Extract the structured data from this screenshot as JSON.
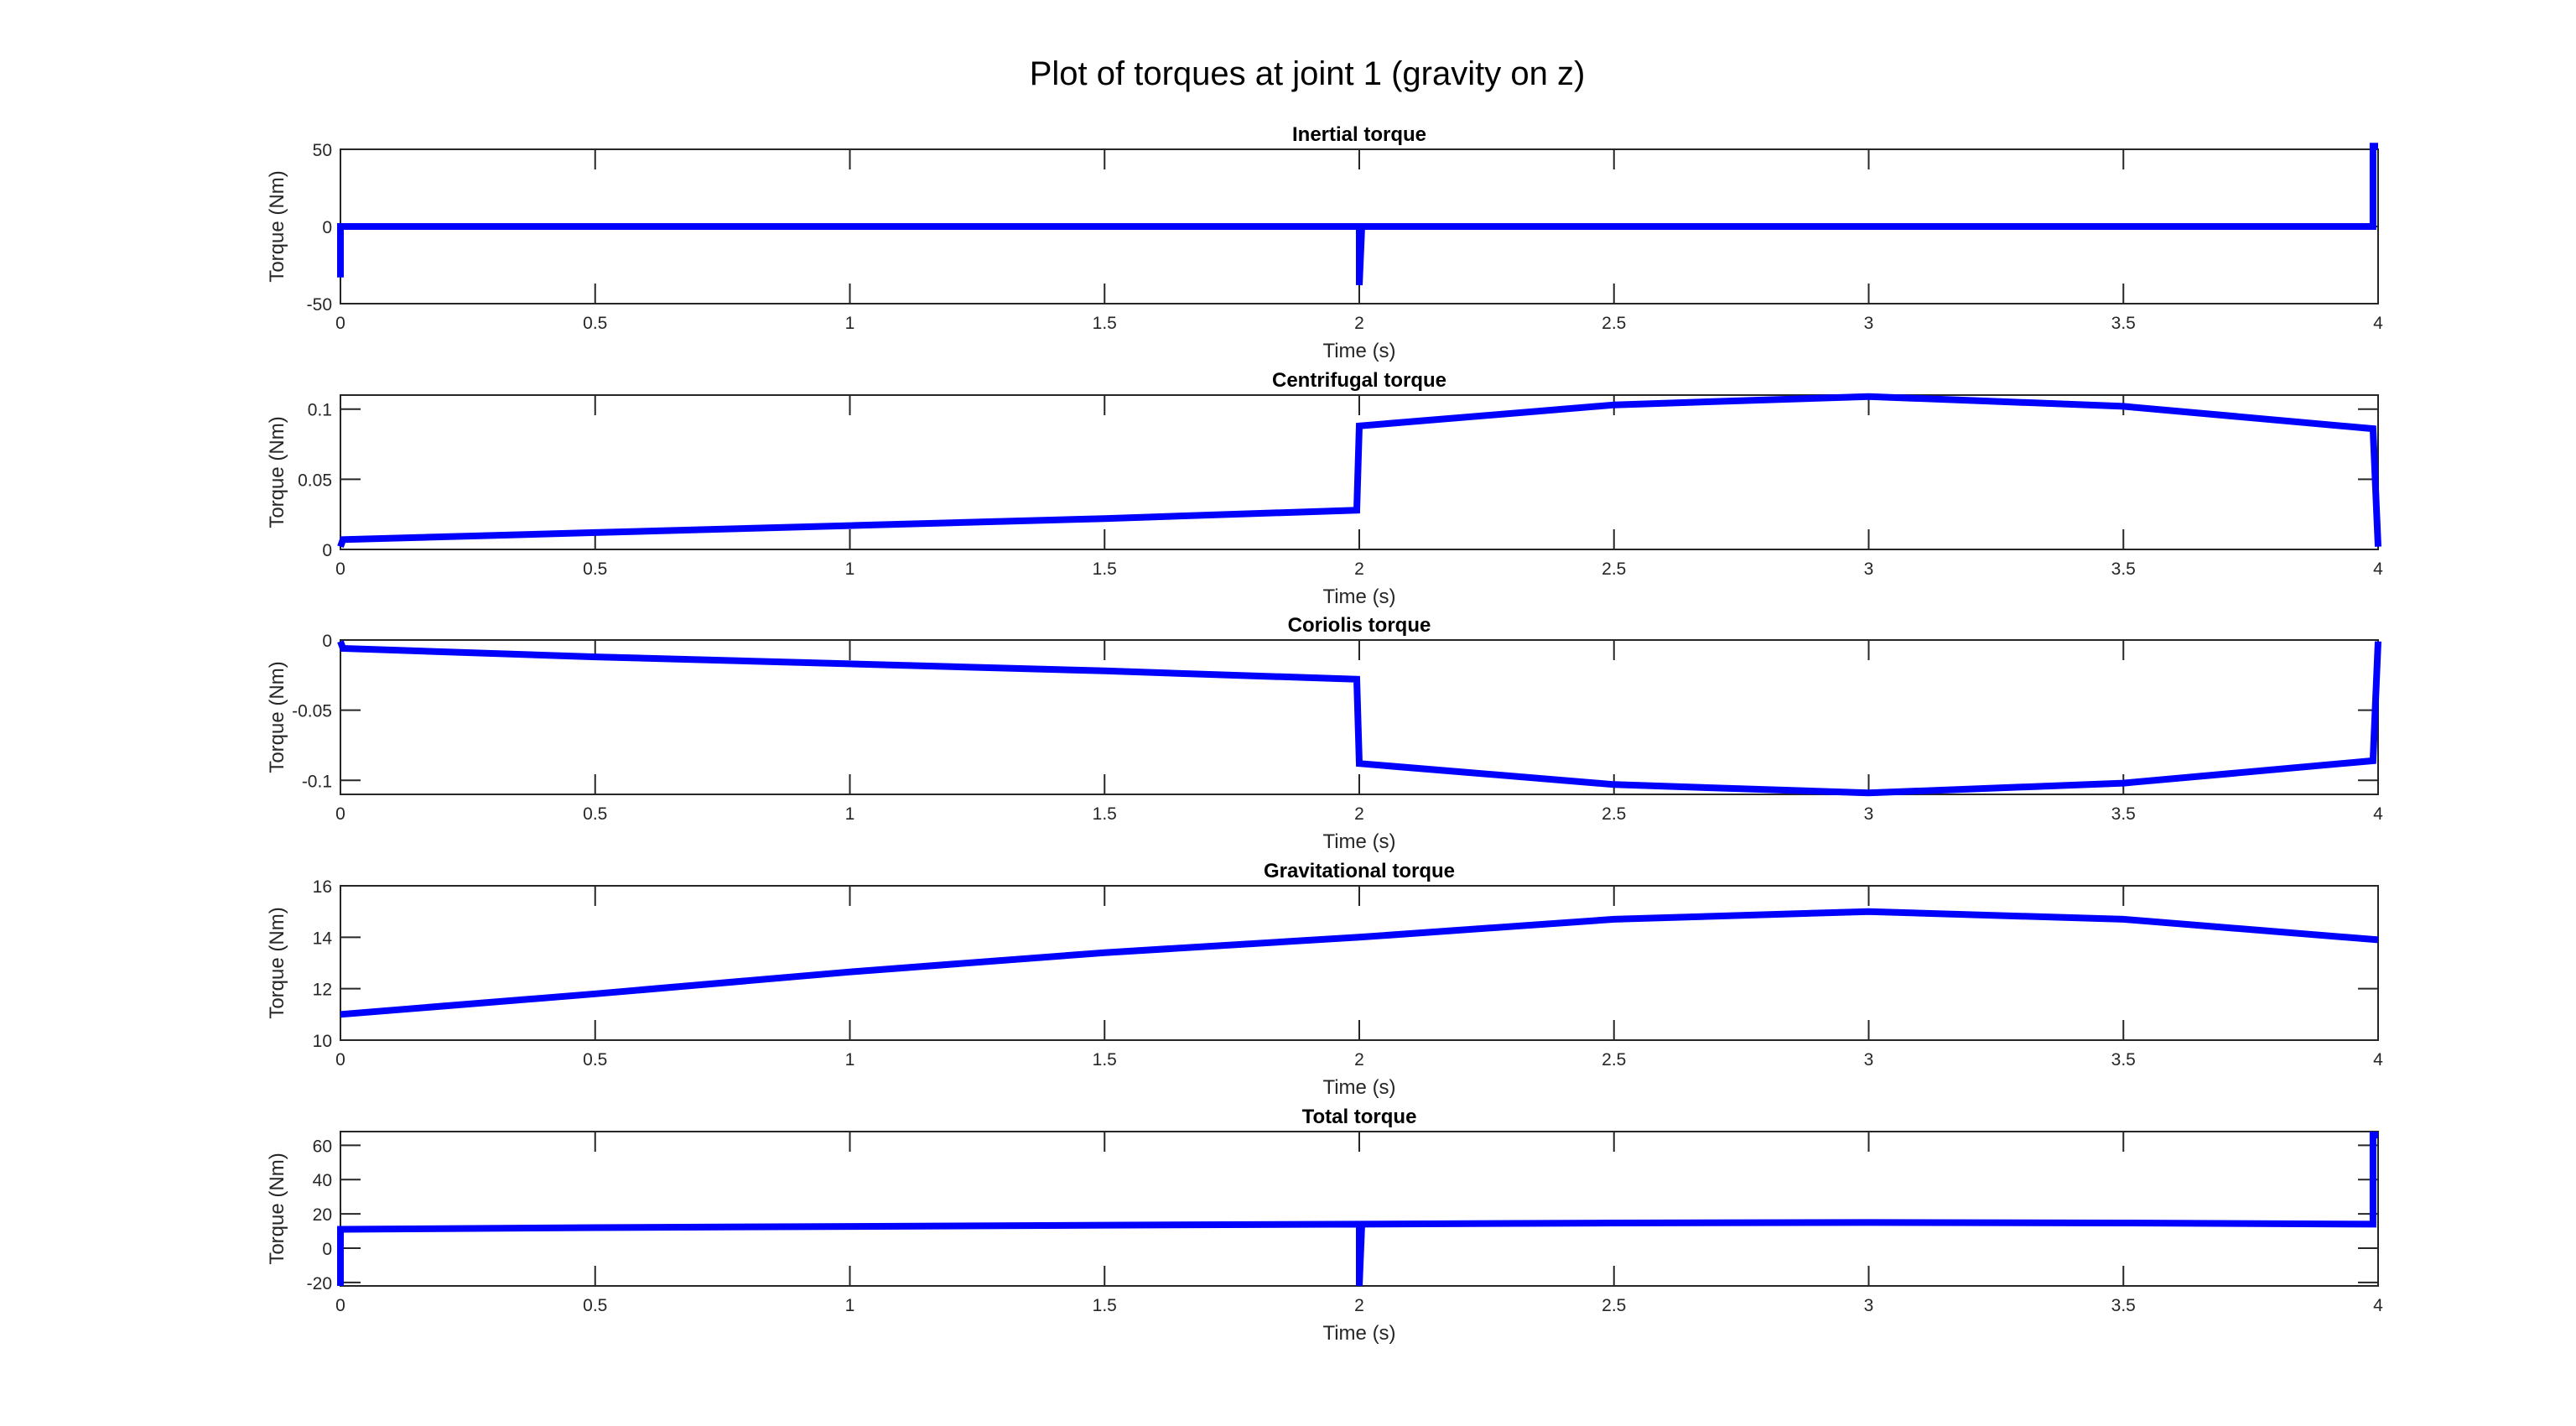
{
  "figure": {
    "title": "Plot of torques at joint 1 (gravity on z)",
    "line_color": "#0000ff"
  },
  "chart_data": [
    {
      "type": "line",
      "title": "Inertial torque",
      "xlabel": "Time (s)",
      "ylabel": "Torque (Nm)",
      "xlim": [
        0,
        4
      ],
      "ylim": [
        -50,
        50
      ],
      "xticks": [
        0,
        0.5,
        1,
        1.5,
        2,
        2.5,
        3,
        3.5,
        4
      ],
      "xtick_labels": [
        "0",
        "0.5",
        "1",
        "1.5",
        "2",
        "2.5",
        "3",
        "3.5",
        "4"
      ],
      "yticks": [
        -50,
        0,
        50
      ],
      "ytick_labels": [
        "-50",
        "0",
        "50"
      ],
      "grid": false,
      "series": [
        {
          "x": [
            0,
            0,
            0.005,
            1.995,
            2,
            2,
            2.005,
            3.99,
            3.99,
            4
          ],
          "y": [
            -33,
            0,
            0,
            0,
            0,
            -38,
            0,
            0,
            52,
            52
          ]
        }
      ]
    },
    {
      "type": "line",
      "title": "Centrifugal torque",
      "xlabel": "Time (s)",
      "ylabel": "Torque (Nm)",
      "xlim": [
        0,
        4
      ],
      "ylim": [
        0,
        0.11
      ],
      "xticks": [
        0,
        0.5,
        1,
        1.5,
        2,
        2.5,
        3,
        3.5,
        4
      ],
      "xtick_labels": [
        "0",
        "0.5",
        "1",
        "1.5",
        "2",
        "2.5",
        "3",
        "3.5",
        "4"
      ],
      "yticks": [
        0,
        0.05,
        0.1
      ],
      "ytick_labels": [
        "0",
        "0.05",
        "0.1"
      ],
      "grid": false,
      "series": [
        {
          "x": [
            0,
            0.005,
            0.5,
            1,
            1.5,
            1.995,
            2,
            2.5,
            3,
            3.5,
            3.99,
            4
          ],
          "y": [
            0.002,
            0.007,
            0.012,
            0.017,
            0.022,
            0.028,
            0.088,
            0.103,
            0.109,
            0.102,
            0.086,
            0.002
          ]
        }
      ]
    },
    {
      "type": "line",
      "title": "Coriolis torque",
      "xlabel": "Time (s)",
      "ylabel": "Torque (Nm)",
      "xlim": [
        0,
        4
      ],
      "ylim": [
        -0.11,
        0
      ],
      "xticks": [
        0,
        0.5,
        1,
        1.5,
        2,
        2.5,
        3,
        3.5,
        4
      ],
      "xtick_labels": [
        "0",
        "0.5",
        "1",
        "1.5",
        "2",
        "2.5",
        "3",
        "3.5",
        "4"
      ],
      "yticks": [
        -0.1,
        -0.05,
        0
      ],
      "ytick_labels": [
        "-0.1",
        "-0.05",
        "0"
      ],
      "grid": false,
      "series": [
        {
          "x": [
            0,
            0.005,
            0.5,
            1,
            1.5,
            1.995,
            2,
            2.5,
            3,
            3.5,
            3.99,
            4
          ],
          "y": [
            -0.001,
            -0.006,
            -0.012,
            -0.017,
            -0.022,
            -0.028,
            -0.088,
            -0.103,
            -0.109,
            -0.102,
            -0.086,
            -0.001
          ]
        }
      ]
    },
    {
      "type": "line",
      "title": "Gravitational torque",
      "xlabel": "Time (s)",
      "ylabel": "Torque (Nm)",
      "xlim": [
        0,
        4
      ],
      "ylim": [
        10,
        16
      ],
      "xticks": [
        0,
        0.5,
        1,
        1.5,
        2,
        2.5,
        3,
        3.5,
        4
      ],
      "xtick_labels": [
        "0",
        "0.5",
        "1",
        "1.5",
        "2",
        "2.5",
        "3",
        "3.5",
        "4"
      ],
      "yticks": [
        10,
        12,
        14,
        16
      ],
      "ytick_labels": [
        "10",
        "12",
        "14",
        "16"
      ],
      "grid": false,
      "series": [
        {
          "x": [
            0,
            0.5,
            1,
            1.5,
            2,
            2.5,
            3,
            3.5,
            4
          ],
          "y": [
            11.0,
            11.8,
            12.65,
            13.4,
            14.0,
            14.7,
            15.0,
            14.7,
            13.9
          ]
        }
      ]
    },
    {
      "type": "line",
      "title": "Total torque",
      "xlabel": "Time (s)",
      "ylabel": "Torque (Nm)",
      "xlim": [
        0,
        4
      ],
      "ylim": [
        -22,
        68
      ],
      "xticks": [
        0,
        0.5,
        1,
        1.5,
        2,
        2.5,
        3,
        3.5,
        4
      ],
      "xtick_labels": [
        "0",
        "0.5",
        "1",
        "1.5",
        "2",
        "2.5",
        "3",
        "3.5",
        "4"
      ],
      "yticks": [
        -20,
        0,
        20,
        40,
        60
      ],
      "ytick_labels": [
        "-20",
        "0",
        "20",
        "40",
        "60"
      ],
      "grid": false,
      "series": [
        {
          "x": [
            0,
            0,
            0.005,
            0.5,
            1,
            1.5,
            1.995,
            2,
            2,
            2.005,
            2.5,
            3,
            3.5,
            3.99,
            3.99,
            4
          ],
          "y": [
            -22,
            11,
            11,
            12,
            12.7,
            13.4,
            14,
            14,
            -22,
            14,
            14.7,
            15,
            14.7,
            14,
            66,
            66
          ]
        }
      ]
    }
  ]
}
